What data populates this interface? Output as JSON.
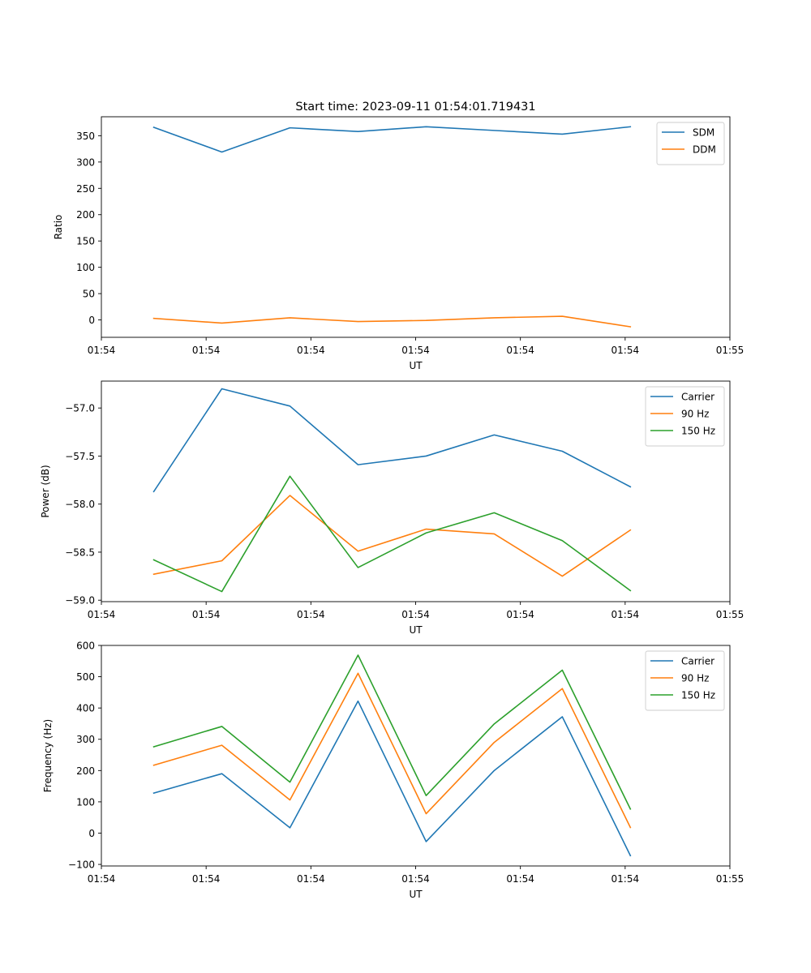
{
  "chart_data": [
    {
      "type": "line",
      "title": "Start time: 2023-09-11 01:54:01.719431",
      "xlabel": "UT",
      "ylabel": "Ratio",
      "xlim": [
        0,
        6
      ],
      "ylim": [
        -33,
        386
      ],
      "xticks": [
        0.0,
        1.0,
        2.0,
        3.0,
        4.0,
        5.0,
        6.0
      ],
      "xtick_labels": [
        "01:54",
        "01:54",
        "01:54",
        "01:54",
        "01:54",
        "01:54",
        "01:55"
      ],
      "yticks": [
        0,
        50,
        100,
        150,
        200,
        250,
        300,
        350
      ],
      "ytick_labels": [
        "0",
        "50",
        "100",
        "150",
        "200",
        "250",
        "300",
        "350"
      ],
      "legend": "top-right",
      "x": [
        0.5,
        1.15,
        1.8,
        2.45,
        3.1,
        3.75,
        4.4,
        5.05
      ],
      "series": [
        {
          "name": "SDM",
          "color": "#1f77b4",
          "values": [
            366,
            319,
            365,
            358,
            367,
            360,
            353,
            367
          ]
        },
        {
          "name": "DDM",
          "color": "#ff7f0e",
          "values": [
            3,
            -6,
            4,
            -3,
            -1,
            4,
            7,
            -13
          ]
        }
      ]
    },
    {
      "type": "line",
      "title": "",
      "xlabel": "UT",
      "ylabel": "Power (dB)",
      "xlim": [
        0,
        6
      ],
      "ylim": [
        -59.015,
        -56.72
      ],
      "xticks": [
        0.0,
        1.0,
        2.0,
        3.0,
        4.0,
        5.0,
        6.0
      ],
      "xtick_labels": [
        "01:54",
        "01:54",
        "01:54",
        "01:54",
        "01:54",
        "01:54",
        "01:55"
      ],
      "yticks": [
        -59.0,
        -58.5,
        -58.0,
        -57.5,
        -57.0
      ],
      "ytick_labels": [
        "−59.0",
        "−58.5",
        "−58.0",
        "−57.5",
        "−57.0"
      ],
      "legend": "top-right",
      "x": [
        0.5,
        1.15,
        1.8,
        2.45,
        3.1,
        3.75,
        4.4,
        5.05
      ],
      "series": [
        {
          "name": "Carrier",
          "color": "#1f77b4",
          "values": [
            -57.87,
            -56.8,
            -56.98,
            -57.59,
            -57.5,
            -57.28,
            -57.45,
            -57.82
          ]
        },
        {
          "name": "90 Hz",
          "color": "#ff7f0e",
          "values": [
            -58.73,
            -58.59,
            -57.91,
            -58.49,
            -58.26,
            -58.31,
            -58.75,
            -58.27
          ]
        },
        {
          "name": "150 Hz",
          "color": "#2ca02c",
          "values": [
            -58.58,
            -58.91,
            -57.71,
            -58.66,
            -58.3,
            -58.09,
            -58.38,
            -58.9
          ]
        }
      ]
    },
    {
      "type": "line",
      "title": "",
      "xlabel": "UT",
      "ylabel": "Frequency (Hz)",
      "xlim": [
        0,
        6
      ],
      "ylim": [
        -105,
        600
      ],
      "xticks": [
        0.0,
        1.0,
        2.0,
        3.0,
        4.0,
        5.0,
        6.0
      ],
      "xtick_labels": [
        "01:54",
        "01:54",
        "01:54",
        "01:54",
        "01:54",
        "01:54",
        "01:55"
      ],
      "yticks": [
        -100,
        0,
        100,
        200,
        300,
        400,
        500,
        600
      ],
      "ytick_labels": [
        "−100",
        "0",
        "100",
        "200",
        "300",
        "400",
        "500",
        "600"
      ],
      "legend": "top-right",
      "x": [
        0.5,
        1.15,
        1.8,
        2.45,
        3.1,
        3.75,
        4.4,
        5.05
      ],
      "series": [
        {
          "name": "Carrier",
          "color": "#1f77b4",
          "values": [
            128,
            190,
            17,
            422,
            -27,
            200,
            372,
            -72
          ]
        },
        {
          "name": "90 Hz",
          "color": "#ff7f0e",
          "values": [
            217,
            281,
            106,
            511,
            62,
            290,
            462,
            18
          ]
        },
        {
          "name": "150 Hz",
          "color": "#2ca02c",
          "values": [
            276,
            341,
            163,
            569,
            120,
            349,
            521,
            77
          ]
        }
      ]
    }
  ]
}
